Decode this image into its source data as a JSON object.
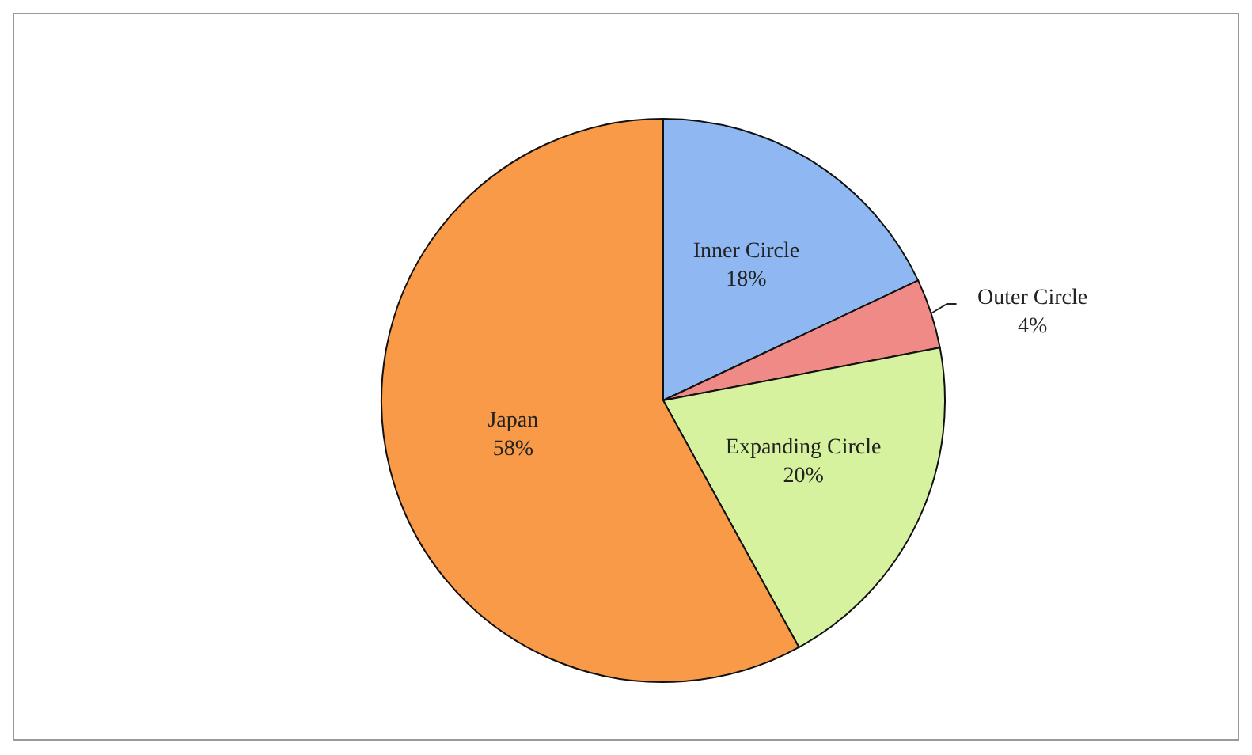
{
  "chart_data": {
    "type": "pie",
    "categories": [
      "Inner Circle",
      "Outer Circle",
      "Expanding Circle",
      "Japan"
    ],
    "values": [
      18,
      4,
      20,
      58
    ],
    "colors": [
      "#8fb8f2",
      "#ef8a86",
      "#d6f29e",
      "#f99a48"
    ],
    "value_labels": [
      "18%",
      "4%",
      "20%",
      "58%"
    ]
  }
}
